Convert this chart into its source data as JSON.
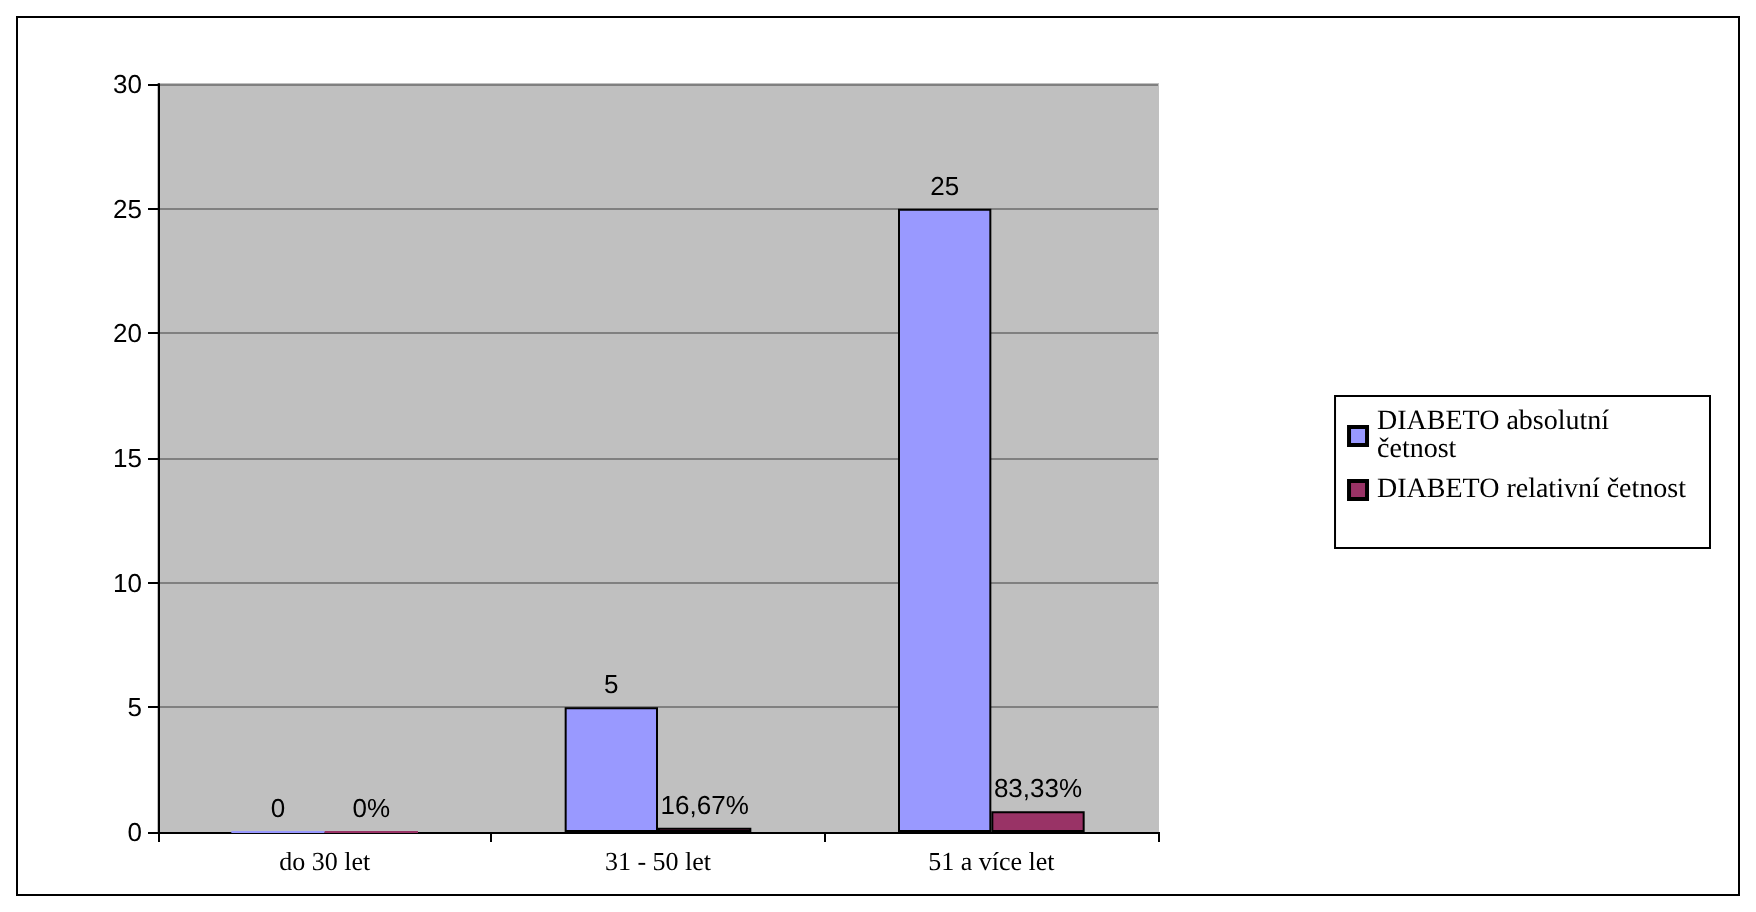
{
  "chart_data": {
    "type": "bar",
    "categories": [
      "do 30 let",
      "31 - 50 let",
      "51 a více let"
    ],
    "series": [
      {
        "name": "DIABETO absolutní\nčetnost",
        "color": "#9999ff",
        "values": [
          0,
          5,
          25
        ],
        "value_labels": [
          "0",
          "5",
          "25"
        ]
      },
      {
        "name": "DIABETO relativní četnost",
        "color": "#993366",
        "values": [
          0,
          0.1667,
          0.8333
        ],
        "value_labels": [
          "0%",
          "16,67%",
          "83,33%"
        ]
      }
    ],
    "ylim": [
      0,
      30
    ],
    "yticks": [
      0,
      5,
      10,
      15,
      20,
      25,
      30
    ],
    "grid": "y",
    "legend": "right"
  }
}
